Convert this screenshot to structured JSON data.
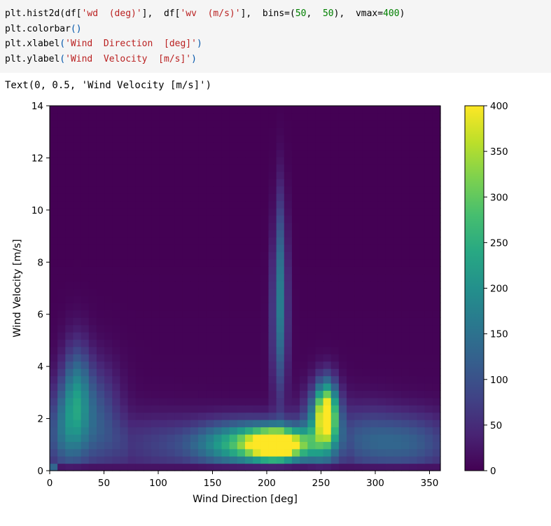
{
  "code_cell": {
    "line1": {
      "a": "plt.hist2d(df[",
      "b": "'wd  (deg)'",
      "c": "],  df[",
      "d": "'wv  (m/s)'",
      "e": "],  bins=(",
      "f": "50",
      "g": ",  ",
      "h": "50",
      "i": "),  vmax=",
      "j": "400",
      "k": ")"
    },
    "line2": {
      "a": "plt.colorbar",
      "b": "()"
    },
    "line3": {
      "a": "plt.xlabel",
      "b": "(",
      "c": "'Wind  Direction  [deg]'",
      "d": ")"
    },
    "line4": {
      "a": "plt.ylabel",
      "b": "(",
      "c": "'Wind  Velocity  [m/s]'",
      "d": ")"
    }
  },
  "output_text": "Text(0, 0.5, 'Wind Velocity [m/s]')",
  "chart_data": {
    "type": "heatmap",
    "title": "",
    "xlabel": "Wind Direction [deg]",
    "ylabel": "Wind Velocity [m/s]",
    "xlim": [
      0,
      360
    ],
    "ylim": [
      0,
      14
    ],
    "xticks": [
      "0",
      "50",
      "100",
      "150",
      "200",
      "250",
      "300",
      "350"
    ],
    "yticks": [
      "0",
      "2",
      "4",
      "6",
      "8",
      "10",
      "12",
      "14"
    ],
    "bins": [
      50,
      50
    ],
    "vmin": 0,
    "vmax": 400,
    "colormap": "viridis",
    "colorbar": {
      "ticks": [
        "0",
        "50",
        "100",
        "150",
        "200",
        "250",
        "300",
        "350",
        "400"
      ]
    },
    "features": [
      {
        "cx": 210,
        "cy": 1.0,
        "sx": 18,
        "sy": 0.4,
        "v": 400
      },
      {
        "cx": 195,
        "cy": 1.1,
        "sx": 30,
        "sy": 0.55,
        "v": 180
      },
      {
        "cx": 160,
        "cy": 1.0,
        "sx": 25,
        "sy": 0.6,
        "v": 110
      },
      {
        "cx": 255,
        "cy": 2.3,
        "sx": 7,
        "sy": 0.8,
        "v": 330
      },
      {
        "cx": 250,
        "cy": 1.6,
        "sx": 12,
        "sy": 1.0,
        "v": 160
      },
      {
        "cx": 212,
        "cy": 6.0,
        "sx": 5,
        "sy": 2.2,
        "v": 150
      },
      {
        "cx": 213,
        "cy": 9.0,
        "sx": 3.5,
        "sy": 1.8,
        "v": 55
      },
      {
        "cx": 25,
        "cy": 2.8,
        "sx": 9,
        "sy": 1.4,
        "v": 165
      },
      {
        "cx": 45,
        "cy": 2.3,
        "sx": 14,
        "sy": 1.3,
        "v": 85
      },
      {
        "cx": 12,
        "cy": 1.8,
        "sx": 10,
        "sy": 1.2,
        "v": 95
      },
      {
        "cx": 330,
        "cy": 1.1,
        "sx": 25,
        "sy": 0.8,
        "v": 80
      },
      {
        "cx": 290,
        "cy": 1.3,
        "sx": 20,
        "sy": 0.9,
        "v": 60
      },
      {
        "cx": 100,
        "cy": 1.0,
        "sx": 28,
        "sy": 0.8,
        "v": 45
      }
    ],
    "low_velocity_row": {
      "v0_range": [
        0,
        0.28
      ],
      "base": 20,
      "edge_x0": 3,
      "edge_v": 130
    }
  }
}
